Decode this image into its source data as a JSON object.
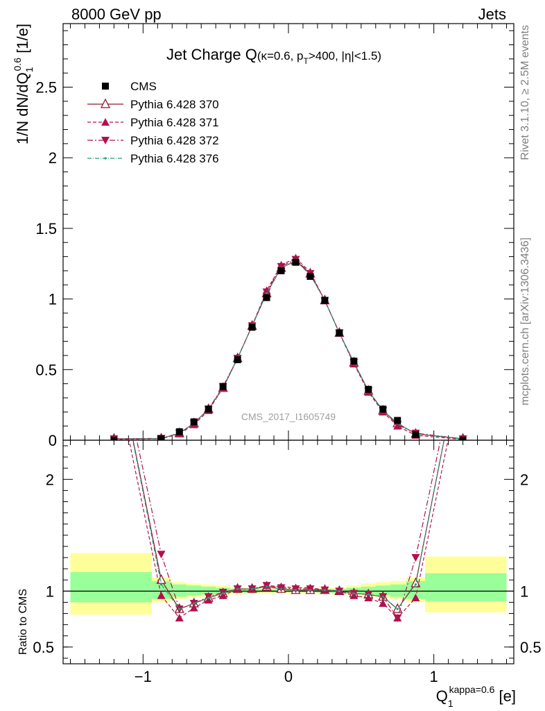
{
  "header": {
    "left": "8000 GeV pp",
    "right": "Jets"
  },
  "side_text": {
    "upper": "Rivet 3.1.10, ≥ 2.5M events",
    "lower": "mcplots.cern.ch [arXiv:1306.3436]"
  },
  "watermark": "CMS_2017_I1605749",
  "colors": {
    "cms": "#000000",
    "p370": "#8b1a2e",
    "p371": "#b0124e",
    "p372": "#b0124e",
    "p376": "#1f9e78",
    "band_inner": "#99ff99",
    "band_outer": "#ffff99"
  },
  "chart_data": [
    {
      "type": "line",
      "title": "Jet Charge Q(κ=0.6, p_T>400, |η|<1.5)",
      "title_parts": {
        "main": "Jet Charge Q",
        "a": "(κ=0.6, p",
        "sub": "T",
        "b": ">400, |η|<1.5)"
      },
      "ylabel": "1/N dN/dQ_1^0.6 [1/e]",
      "ylabel_parts": {
        "a": "1/N dN/dQ",
        "sub": "1",
        "sup": "0.6",
        "b": " [1/e]"
      },
      "xlim": [
        -1.55,
        1.55
      ],
      "ylim": [
        0,
        2.95
      ],
      "yticks": [
        0,
        0.5,
        1,
        1.5,
        2,
        2.5
      ],
      "ytick_labels": [
        "0",
        "0.5",
        "1",
        "1.5",
        "2",
        "2.5"
      ],
      "legend_position": "top-left",
      "x": [
        -1.2,
        -0.875,
        -0.75,
        -0.65,
        -0.55,
        -0.45,
        -0.35,
        -0.25,
        -0.15,
        -0.05,
        0.05,
        0.15,
        0.25,
        0.35,
        0.45,
        0.55,
        0.65,
        0.75,
        0.875,
        1.2
      ],
      "series": [
        {
          "name": "CMS",
          "values": [
            0.0,
            0.01,
            0.06,
            0.13,
            0.22,
            0.38,
            0.57,
            0.8,
            1.01,
            1.2,
            1.26,
            1.16,
            0.99,
            0.76,
            0.56,
            0.36,
            0.22,
            0.14,
            0.04,
            0.0
          ]
        },
        {
          "name": "Pythia 6.428 370",
          "values": [
            0.01,
            0.012,
            0.05,
            0.12,
            0.22,
            0.37,
            0.58,
            0.81,
            1.04,
            1.22,
            1.27,
            1.18,
            0.99,
            0.76,
            0.55,
            0.35,
            0.21,
            0.12,
            0.045,
            0.01
          ]
        },
        {
          "name": "Pythia 6.428 371",
          "values": [
            0.005,
            0.01,
            0.045,
            0.11,
            0.21,
            0.37,
            0.58,
            0.81,
            1.06,
            1.24,
            1.29,
            1.19,
            0.99,
            0.76,
            0.54,
            0.34,
            0.2,
            0.1,
            0.035,
            0.005
          ]
        },
        {
          "name": "Pythia 6.428 372",
          "values": [
            0.01,
            0.013,
            0.05,
            0.12,
            0.22,
            0.38,
            0.58,
            0.81,
            1.05,
            1.23,
            1.28,
            1.18,
            0.99,
            0.76,
            0.55,
            0.35,
            0.21,
            0.11,
            0.05,
            0.01
          ]
        },
        {
          "name": "Pythia 6.428 376",
          "values": [
            0.008,
            0.011,
            0.05,
            0.12,
            0.22,
            0.37,
            0.58,
            0.81,
            1.04,
            1.22,
            1.27,
            1.17,
            0.99,
            0.76,
            0.55,
            0.35,
            0.21,
            0.12,
            0.045,
            0.008
          ]
        }
      ]
    },
    {
      "type": "line",
      "ylabel": "Ratio to CMS",
      "xlabel": "Q_1^kappa=0.6 [e]",
      "xlabel_parts": {
        "a": "Q",
        "sub": "1",
        "sup": "kappa=0.6",
        "b": " [e]"
      },
      "xlim": [
        -1.55,
        1.55
      ],
      "ylim": [
        0.35,
        2.35
      ],
      "yticks": [
        0.5,
        1,
        2
      ],
      "ytick_labels": [
        "0.5",
        "1",
        "2"
      ],
      "xticks": [
        -1,
        0,
        1
      ],
      "xtick_labels": [
        "−1",
        "0",
        "1"
      ],
      "bins": [
        [
          -1.5,
          -0.94
        ],
        [
          -0.94,
          -0.81
        ],
        [
          -0.81,
          -0.7
        ],
        [
          -0.7,
          -0.6
        ],
        [
          -0.6,
          -0.5
        ],
        [
          -0.5,
          -0.4
        ],
        [
          -0.4,
          -0.3
        ],
        [
          -0.3,
          -0.2
        ],
        [
          -0.2,
          -0.1
        ],
        [
          -0.1,
          0.0
        ],
        [
          0.0,
          0.1
        ],
        [
          0.1,
          0.2
        ],
        [
          0.2,
          0.3
        ],
        [
          0.3,
          0.4
        ],
        [
          0.4,
          0.5
        ],
        [
          0.5,
          0.6
        ],
        [
          0.6,
          0.7
        ],
        [
          0.7,
          0.81
        ],
        [
          0.81,
          0.94
        ],
        [
          0.94,
          1.5
        ]
      ],
      "band_inner": [
        [
          0.9,
          1.17
        ],
        [
          0.93,
          1.09
        ],
        [
          0.95,
          1.06
        ],
        [
          0.96,
          1.05
        ],
        [
          0.97,
          1.04
        ],
        [
          0.98,
          1.03
        ],
        [
          0.985,
          1.02
        ],
        [
          0.985,
          1.02
        ],
        [
          0.99,
          1.015
        ],
        [
          0.99,
          1.015
        ],
        [
          0.99,
          1.015
        ],
        [
          0.99,
          1.015
        ],
        [
          0.985,
          1.02
        ],
        [
          0.985,
          1.02
        ],
        [
          0.98,
          1.03
        ],
        [
          0.97,
          1.04
        ],
        [
          0.96,
          1.05
        ],
        [
          0.95,
          1.06
        ],
        [
          0.93,
          1.09
        ],
        [
          0.91,
          1.16
        ]
      ],
      "band_outer": [
        [
          0.79,
          1.34
        ],
        [
          0.9,
          1.12
        ],
        [
          0.93,
          1.08
        ],
        [
          0.94,
          1.07
        ],
        [
          0.95,
          1.06
        ],
        [
          0.96,
          1.05
        ],
        [
          0.97,
          1.03
        ],
        [
          0.975,
          1.03
        ],
        [
          0.98,
          1.025
        ],
        [
          0.98,
          1.025
        ],
        [
          0.98,
          1.025
        ],
        [
          0.98,
          1.025
        ],
        [
          0.975,
          1.03
        ],
        [
          0.97,
          1.03
        ],
        [
          0.96,
          1.05
        ],
        [
          0.95,
          1.07
        ],
        [
          0.94,
          1.08
        ],
        [
          0.93,
          1.09
        ],
        [
          0.9,
          1.12
        ],
        [
          0.81,
          1.31
        ]
      ],
      "x": [
        -1.2,
        -0.875,
        -0.75,
        -0.65,
        -0.55,
        -0.45,
        -0.35,
        -0.25,
        -0.15,
        -0.05,
        0.05,
        0.15,
        0.25,
        0.35,
        0.45,
        0.55,
        0.65,
        0.75,
        0.875,
        1.2
      ],
      "series": [
        {
          "name": "Pythia 6.428 370",
          "values": [
            3.2,
            1.1,
            0.84,
            0.89,
            0.94,
            0.98,
            1.02,
            1.02,
            1.04,
            1.02,
            1.01,
            1.01,
            1.01,
            1.0,
            0.98,
            0.97,
            0.95,
            0.84,
            1.07,
            3.2
          ]
        },
        {
          "name": "Pythia 6.428 371",
          "values": [
            3.0,
            0.96,
            0.76,
            0.85,
            0.92,
            0.96,
            1.02,
            1.02,
            1.05,
            1.04,
            1.03,
            1.03,
            1.01,
            1.0,
            0.96,
            0.94,
            0.89,
            0.76,
            0.94,
            3.0
          ]
        },
        {
          "name": "Pythia 6.428 372",
          "values": [
            3.3,
            1.33,
            0.84,
            0.89,
            0.95,
            0.99,
            1.02,
            1.02,
            1.05,
            1.03,
            1.02,
            1.02,
            1.01,
            1.0,
            0.98,
            0.97,
            0.95,
            0.76,
            1.3,
            3.3
          ]
        },
        {
          "name": "Pythia 6.428 376",
          "values": [
            3.2,
            1.06,
            0.84,
            0.89,
            0.94,
            0.98,
            1.02,
            1.02,
            1.04,
            1.02,
            1.01,
            1.01,
            1.01,
            1.0,
            0.98,
            0.97,
            0.95,
            0.84,
            1.06,
            3.2
          ]
        }
      ]
    }
  ]
}
